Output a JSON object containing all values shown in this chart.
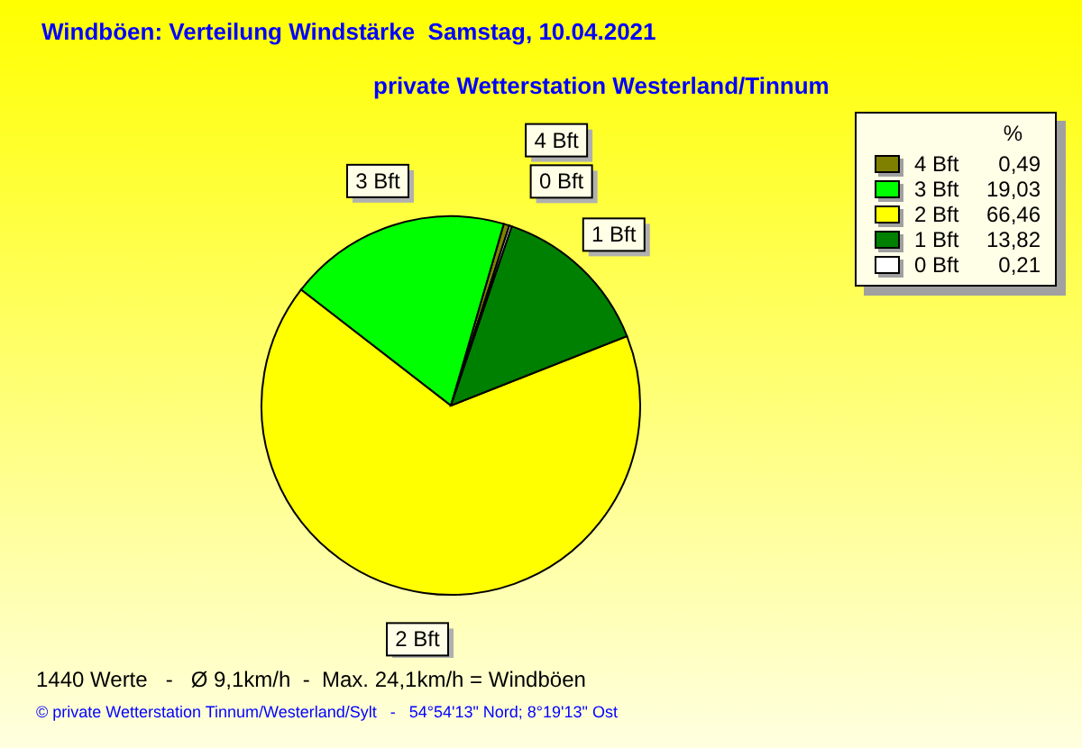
{
  "chart_data": {
    "type": "pie",
    "title": "Windböen: Verteilung Windstärke  Samstag, 10.04.2021",
    "subtitle": "private Wetterstation Westerland/Tinnum",
    "categories": [
      "4 Bft",
      "3 Bft",
      "2 Bft",
      "1 Bft",
      "0 Bft"
    ],
    "values": [
      0.49,
      19.03,
      66.46,
      13.82,
      0.21
    ],
    "value_labels": [
      "0,49",
      "19,03",
      "66,46",
      "13,82",
      "0,21"
    ],
    "colors": [
      "#808000",
      "#00ff00",
      "#ffff00",
      "#008000",
      "#ffffff"
    ],
    "legend": "top right",
    "legend_title": "%",
    "annotations": [
      "1440 Werte   -   Ø 9,1km/h  -  Max. 24,1km/h = Windböen",
      "© private Wetterstation Tinnum/Westerland/Sylt   -   54°54'13\" Nord; 8°19'13\" Ost"
    ]
  }
}
